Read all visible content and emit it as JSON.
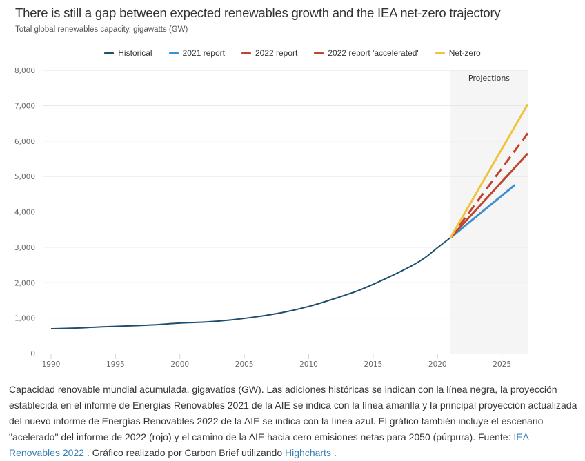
{
  "header": {
    "title": "There is still a gap between expected renewables growth and the IEA net-zero trajectory",
    "subtitle": "Total global renewables capacity, gigawatts (GW)"
  },
  "legend": [
    {
      "label": "Historical",
      "color": "#1f4e6e"
    },
    {
      "label": "2021 report",
      "color": "#3a8fd0"
    },
    {
      "label": "2022 report",
      "color": "#c0432e"
    },
    {
      "label": "2022 report 'accelerated'",
      "color": "#c0432e"
    },
    {
      "label": "Net-zero",
      "color": "#f0c33c"
    }
  ],
  "chart_data": {
    "type": "line",
    "title": "There is still a gap between expected renewables growth and the IEA net-zero trajectory",
    "subtitle": "Total global renewables capacity, gigawatts (GW)",
    "xlabel": "",
    "ylabel": "",
    "xlim": [
      1990,
      2027
    ],
    "ylim": [
      0,
      8000
    ],
    "x_ticks": [
      1990,
      1995,
      2000,
      2005,
      2010,
      2015,
      2020,
      2025
    ],
    "y_ticks": [
      0,
      1000,
      2000,
      3000,
      4000,
      5000,
      6000,
      7000,
      8000
    ],
    "y_tick_labels": [
      "0",
      "1,000",
      "2,000",
      "3,000",
      "4,000",
      "5,000",
      "6,000",
      "7,000",
      "8,000"
    ],
    "grid": "horizontal",
    "legend_position": "top-center",
    "plot_band": {
      "from": 2021,
      "to": 2027,
      "label": "Projections",
      "color": "#f5f5f5"
    },
    "series": [
      {
        "name": "Historical",
        "color": "#1f4e6e",
        "dash": "solid",
        "x": [
          1990,
          1992,
          1994,
          1996,
          1998,
          2000,
          2002,
          2004,
          2006,
          2008,
          2010,
          2012,
          2014,
          2016,
          2018,
          2019,
          2020,
          2021
        ],
        "y": [
          700,
          720,
          755,
          780,
          810,
          860,
          890,
          950,
          1040,
          1160,
          1330,
          1550,
          1800,
          2120,
          2480,
          2700,
          2990,
          3270
        ]
      },
      {
        "name": "2021 report",
        "color": "#3a8fd0",
        "dash": "solid",
        "x": [
          2021,
          2026
        ],
        "y": [
          3270,
          4760
        ]
      },
      {
        "name": "2022 report",
        "color": "#c0432e",
        "dash": "solid",
        "x": [
          2021,
          2027
        ],
        "y": [
          3270,
          5650
        ]
      },
      {
        "name": "2022 report 'accelerated'",
        "color": "#c0432e",
        "dash": "dashed",
        "x": [
          2021,
          2027
        ],
        "y": [
          3270,
          6220
        ]
      },
      {
        "name": "Net-zero",
        "color": "#f0c33c",
        "dash": "solid",
        "x": [
          2021,
          2027
        ],
        "y": [
          3270,
          7040
        ]
      }
    ]
  },
  "caption": {
    "text": "Capacidad renovable mundial acumulada, gigavatios (GW). Las adiciones históricas se indican con la línea negra, la proyección establecida en el informe de Energías Renovables 2021 de la AIE se indica con la línea amarilla y la principal proyección actualizada del nuevo informe de Energías Renovables 2022 de la AIE se indica con la línea azul. El gráfico también incluye el escenario \"acelerado\" del informe de 2022 (rojo) y el camino de la AIE hacia cero emisiones netas para 2050 (púrpura). Fuente: ",
    "link1": "IEA Renovables 2022",
    "middle": " . Gráfico realizado por Carbon Brief utilizando ",
    "link2": "Highcharts",
    "end": " ."
  }
}
